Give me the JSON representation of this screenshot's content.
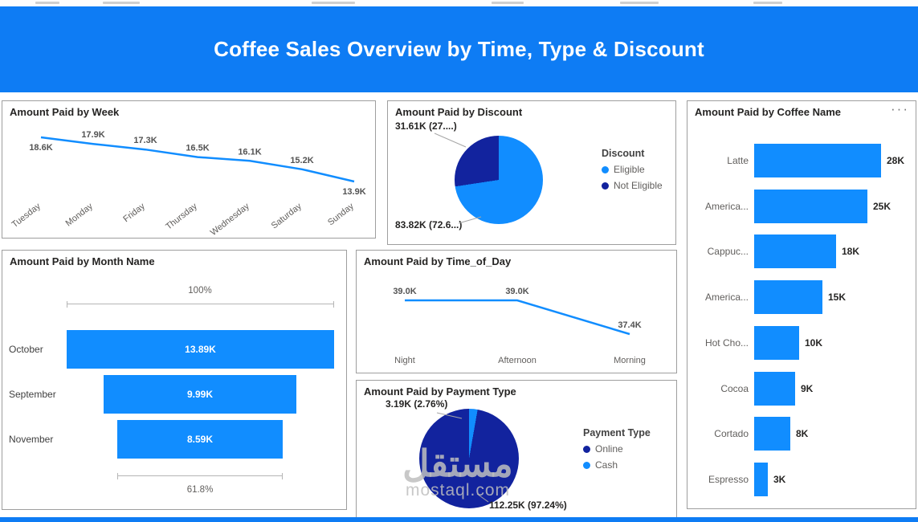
{
  "header": {
    "title": "Coffee Sales Overview by Time, Type & Discount"
  },
  "icons": {
    "more_options": "···"
  },
  "colors": {
    "header_blue": "#0e7cf4",
    "light_blue": "#118DFF",
    "dark_blue": "#12239E"
  },
  "watermark": {
    "arabic": "مستقل",
    "domain": "mostaql.com"
  },
  "chart_data": [
    {
      "id": "week",
      "type": "line",
      "title": "Amount Paid by Week",
      "categories": [
        "Tuesday",
        "Monday",
        "Friday",
        "Thursday",
        "Wednesday",
        "Saturday",
        "Sunday"
      ],
      "values": [
        18.6,
        17.9,
        17.3,
        16.5,
        16.1,
        15.2,
        13.9
      ],
      "labels": [
        "18.6K",
        "17.9K",
        "17.3K",
        "16.5K",
        "16.1K",
        "15.2K",
        "13.9K"
      ],
      "value_unit": "K",
      "legend": "none",
      "grid": false
    },
    {
      "id": "discount",
      "type": "pie",
      "title": "Amount Paid by Discount",
      "legend_title": "Discount",
      "legend_position": "right",
      "slices": [
        {
          "label": "Eligible",
          "value_label": "83.82K (72.6...)",
          "value": 83.82,
          "percent": 72.6,
          "color": "light_blue"
        },
        {
          "label": "Not Eligible",
          "value_label": "31.61K (27....)",
          "value": 31.61,
          "percent": 27.4,
          "color": "dark_blue"
        }
      ]
    },
    {
      "id": "coffee",
      "type": "bar",
      "title": "Amount Paid by Coffee Name",
      "orientation": "horizontal",
      "categories": [
        "Latte",
        "America...",
        "Cappuc...",
        "America...",
        "Hot Cho...",
        "Cocoa",
        "Cortado",
        "Espresso"
      ],
      "values": [
        28,
        25,
        18,
        15,
        10,
        9,
        8,
        3
      ],
      "labels": [
        "28K",
        "25K",
        "18K",
        "15K",
        "10K",
        "9K",
        "8K",
        "3K"
      ],
      "value_unit": "K"
    },
    {
      "id": "month",
      "type": "funnel",
      "title": "Amount Paid by Month Name",
      "categories": [
        "October",
        "September",
        "November"
      ],
      "values": [
        13.89,
        9.99,
        8.59
      ],
      "labels": [
        "13.89K",
        "9.99K",
        "8.59K"
      ],
      "top_percent": "100%",
      "bottom_percent": "61.8%"
    },
    {
      "id": "time_of_day",
      "type": "line",
      "title": "Amount Paid by Time_of_Day",
      "categories": [
        "Night",
        "Afternoon",
        "Morning"
      ],
      "values": [
        39.0,
        39.0,
        37.4
      ],
      "labels": [
        "39.0K",
        "39.0K",
        "37.4K"
      ],
      "value_unit": "K",
      "grid": false
    },
    {
      "id": "payment",
      "type": "pie",
      "title": "Amount Paid by Payment Type",
      "legend_title": "Payment Type",
      "legend_position": "right",
      "slices": [
        {
          "label": "Online",
          "value_label": "112.25K (97.24%)",
          "value": 112.25,
          "percent": 97.24,
          "color": "dark_blue"
        },
        {
          "label": "Cash",
          "value_label": "3.19K (2.76%)",
          "value": 3.19,
          "percent": 2.76,
          "color": "light_blue"
        }
      ]
    }
  ]
}
